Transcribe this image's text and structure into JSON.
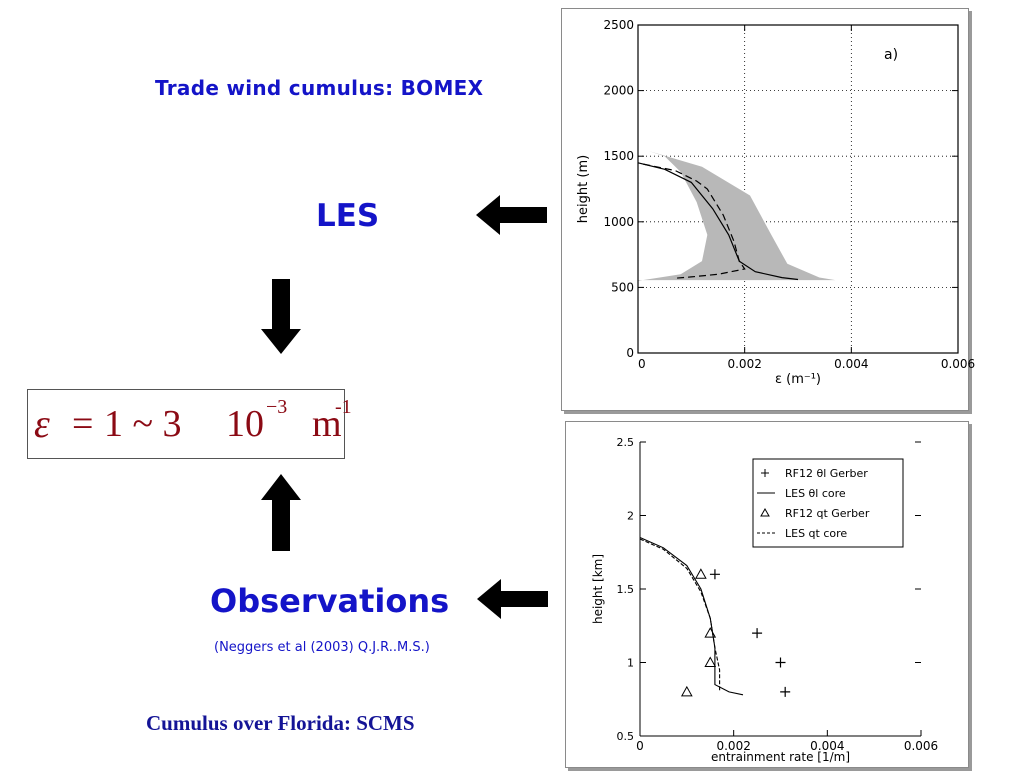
{
  "slide": {
    "bomex_title": "Trade wind cumulus: BOMEX",
    "les_label": "LES",
    "observations_label": "Observations",
    "reference": "(Neggers et al (2003)  Q.J.R..M.S.)",
    "scms_title": "Cumulus over Florida: SCMS",
    "formula": {
      "epsilon": "ε",
      "equals": "=",
      "range": "1 ~ 3",
      "mantissa": "10",
      "exponent": "−3",
      "unit": "m",
      "unit_exponent": "-1"
    },
    "colors": {
      "title_blue": "#1414c8",
      "formula_red": "#8b0a14",
      "arrow": "#000000",
      "spread_gray": "#b8b8b8"
    }
  },
  "chart_data": [
    {
      "type": "line",
      "panel_label": "a)",
      "xlabel": "ε (m⁻¹)",
      "ylabel": "height (m)",
      "xlim": [
        0,
        0.006
      ],
      "ylim": [
        0,
        2500
      ],
      "xticks": [
        "0",
        "0.002",
        "0.004",
        "0.006"
      ],
      "yticks": [
        "0",
        "500",
        "1000",
        "1500",
        "2000",
        "2500"
      ],
      "grid": true,
      "band": {
        "lower": [
          [
            0.0005,
            1500
          ],
          [
            0.0008,
            1380
          ],
          [
            0.0011,
            1150
          ],
          [
            0.0013,
            900
          ],
          [
            0.0012,
            700
          ],
          [
            0.0008,
            600
          ],
          [
            0,
            550
          ]
        ],
        "upper": [
          [
            0.0002,
            1540
          ],
          [
            0.0012,
            1420
          ],
          [
            0.0021,
            1200
          ],
          [
            0.0025,
            900
          ],
          [
            0.0028,
            680
          ],
          [
            0.0034,
            575
          ],
          [
            0.0037,
            555
          ],
          [
            0,
            555
          ]
        ]
      },
      "series": [
        {
          "style": "solid",
          "points": [
            [
              0,
              1450
            ],
            [
              0.0005,
              1400
            ],
            [
              0.001,
              1300
            ],
            [
              0.0014,
              1100
            ],
            [
              0.0017,
              900
            ],
            [
              0.0019,
              700
            ],
            [
              0.0022,
              620
            ],
            [
              0.0027,
              575
            ],
            [
              0.003,
              560
            ]
          ]
        },
        {
          "style": "dashed",
          "points": [
            [
              0.0001,
              1440
            ],
            [
              0.0007,
              1390
            ],
            [
              0.0011,
              1310
            ],
            [
              0.0013,
              1250
            ],
            [
              0.0016,
              1050
            ],
            [
              0.0018,
              850
            ],
            [
              0.0019,
              700
            ],
            [
              0.002,
              640
            ],
            [
              0.0015,
              600
            ],
            [
              0.001,
              580
            ],
            [
              0.0007,
              570
            ]
          ]
        }
      ]
    },
    {
      "type": "line",
      "xlabel": "entrainment rate  [1/m]",
      "ylabel": "height [km]",
      "xlim": [
        0,
        0.006
      ],
      "ylim": [
        0.5,
        2.5
      ],
      "xticks": [
        "0",
        "0.002",
        "0.004",
        "0.006"
      ],
      "yticks": [
        "0.5",
        "1",
        "1.5",
        "2",
        "2.5"
      ],
      "legend": [
        {
          "label": "RF12 θl Gerber",
          "marker": "+"
        },
        {
          "label": "LES  θl core",
          "marker": "solid"
        },
        {
          "label": "RF12 qt Gerber",
          "marker": "△"
        },
        {
          "label": "LES  qt core",
          "marker": "dashed"
        }
      ],
      "legend_position": "top-right",
      "series": [
        {
          "name": "RF12 θl Gerber",
          "style": "plus",
          "points": [
            [
              0.0016,
              1.6
            ],
            [
              0.0025,
              1.2
            ],
            [
              0.003,
              1.0
            ],
            [
              0.0031,
              0.8
            ]
          ]
        },
        {
          "name": "LES  θl core",
          "style": "solid",
          "points": [
            [
              0,
              1.85
            ],
            [
              0.0005,
              1.78
            ],
            [
              0.001,
              1.66
            ],
            [
              0.0013,
              1.5
            ],
            [
              0.0015,
              1.3
            ],
            [
              0.0016,
              1.1
            ],
            [
              0.0016,
              0.95
            ],
            [
              0.0016,
              0.85
            ],
            [
              0.0019,
              0.8
            ],
            [
              0.0022,
              0.78
            ]
          ]
        },
        {
          "name": "RF12 qt Gerber",
          "style": "triangle",
          "points": [
            [
              0.0013,
              1.6
            ],
            [
              0.0015,
              1.2
            ],
            [
              0.0015,
              1.0
            ],
            [
              0.001,
              0.8
            ]
          ]
        },
        {
          "name": "LES  qt core",
          "style": "dashed",
          "points": [
            [
              0,
              1.84
            ],
            [
              0.0005,
              1.77
            ],
            [
              0.001,
              1.64
            ],
            [
              0.0013,
              1.48
            ],
            [
              0.0015,
              1.3
            ],
            [
              0.0016,
              1.1
            ],
            [
              0.0017,
              0.95
            ],
            [
              0.0017,
              0.8
            ]
          ]
        }
      ]
    }
  ]
}
